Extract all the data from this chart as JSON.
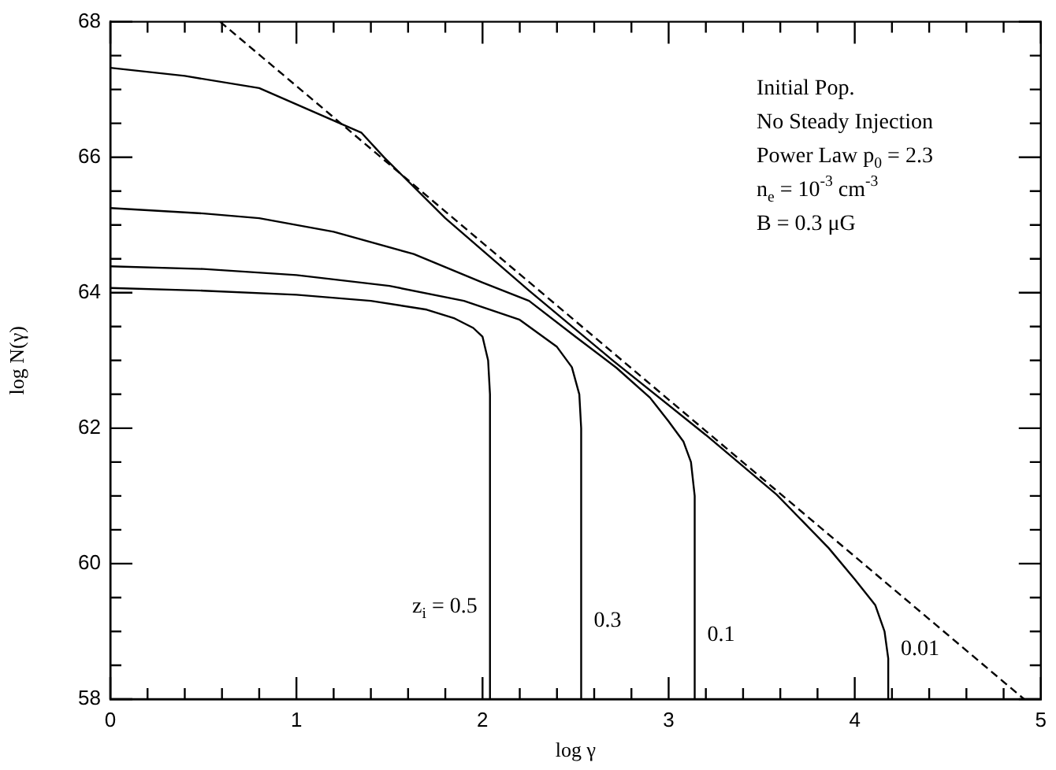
{
  "chart_data": {
    "type": "line",
    "xlabel": "log γ",
    "ylabel": "log N(γ)",
    "xlim": [
      0,
      5
    ],
    "ylim": [
      58,
      68
    ],
    "xticks": [
      0,
      {
        "value": 0.2,
        "label": null
      },
      {
        "value": 0.4,
        "label": null
      },
      {
        "value": 0.6,
        "label": null
      },
      {
        "value": 0.8,
        "label": null
      },
      1,
      {
        "value": 1.2,
        "label": null
      },
      {
        "value": 1.4,
        "label": null
      },
      {
        "value": 1.6,
        "label": null
      },
      {
        "value": 1.8,
        "label": null
      },
      2,
      {
        "value": 2.2,
        "label": null
      },
      {
        "value": 2.4,
        "label": null
      },
      {
        "value": 2.6,
        "label": null
      },
      {
        "value": 2.8,
        "label": null
      },
      3,
      {
        "value": 3.2,
        "label": null
      },
      {
        "value": 3.4,
        "label": null
      },
      {
        "value": 3.6,
        "label": null
      },
      {
        "value": 3.8,
        "label": null
      },
      4,
      {
        "value": 4.2,
        "label": null
      },
      {
        "value": 4.4,
        "label": null
      },
      {
        "value": 4.6,
        "label": null
      },
      {
        "value": 4.8,
        "label": null
      },
      5
    ],
    "yticks": [
      58,
      {
        "value": 58.5,
        "label": null
      },
      {
        "value": 59,
        "label": null
      },
      {
        "value": 59.5,
        "label": null
      },
      60,
      {
        "value": 60.5,
        "label": null
      },
      {
        "value": 61,
        "label": null
      },
      {
        "value": 61.5,
        "label": null
      },
      62,
      {
        "value": 62.5,
        "label": null
      },
      {
        "value": 63,
        "label": null
      },
      {
        "value": 63.5,
        "label": null
      },
      64,
      {
        "value": 64.5,
        "label": null
      },
      {
        "value": 65,
        "label": null
      },
      {
        "value": 65.5,
        "label": null
      },
      66,
      {
        "value": 66.5,
        "label": null
      },
      {
        "value": 67,
        "label": null
      },
      {
        "value": 67.5,
        "label": null
      },
      68
    ],
    "grid": false,
    "legend": false,
    "marker": "none",
    "annotations": [
      "Initial Pop.",
      "No Steady Injection",
      "Power Law p$_{0}$ = 2.3",
      "n$_{e}$ = 10$^{-3}$ cm$^{-3}$",
      "B = 0.3 μG"
    ],
    "series": [
      {
        "color": "#000000",
        "line_style": "dashed",
        "x": [
          0.59,
          4.91
        ],
        "values": [
          68,
          58
        ]
      },
      {
        "name": "0.01",
        "color": "#000000",
        "line_style": "solid",
        "x": [
          0,
          0.4,
          0.8,
          1.35,
          1.47,
          1.8,
          2.25,
          2.7,
          3.2,
          3.58,
          3.86,
          4.0,
          4.11,
          4.16,
          4.18,
          4.18
        ],
        "values": [
          67.32,
          67.2,
          67.02,
          66.36,
          66.0,
          65.1,
          64.03,
          63.0,
          61.9,
          61.02,
          60.23,
          59.77,
          59.39,
          59.0,
          58.6,
          58
        ]
      },
      {
        "name": "0.1",
        "color": "#000000",
        "line_style": "solid",
        "x": [
          0,
          0.5,
          0.8,
          1.2,
          1.63,
          2.0,
          2.25,
          2.5,
          2.72,
          2.9,
          3.0,
          3.08,
          3.12,
          3.14,
          3.14
        ],
        "values": [
          65.25,
          65.17,
          65.1,
          64.9,
          64.57,
          64.15,
          63.88,
          63.35,
          62.89,
          62.45,
          62.1,
          61.8,
          61.5,
          61.0,
          58
        ]
      },
      {
        "name": "0.3",
        "color": "#000000",
        "line_style": "solid",
        "x": [
          0,
          0.5,
          1.0,
          1.5,
          1.9,
          2.2,
          2.4,
          2.48,
          2.52,
          2.53,
          2.53
        ],
        "values": [
          64.39,
          64.35,
          64.26,
          64.1,
          63.88,
          63.6,
          63.2,
          62.9,
          62.5,
          62.0,
          58
        ]
      },
      {
        "name": "z$_{i}$ = 0.5",
        "color": "#000000",
        "line_style": "solid",
        "x": [
          0,
          0.5,
          1.0,
          1.4,
          1.7,
          1.85,
          1.95,
          2.0,
          2.03,
          2.04,
          2.04
        ],
        "values": [
          64.07,
          64.03,
          63.97,
          63.88,
          63.75,
          63.62,
          63.48,
          63.35,
          63.0,
          62.5,
          58
        ]
      }
    ]
  }
}
